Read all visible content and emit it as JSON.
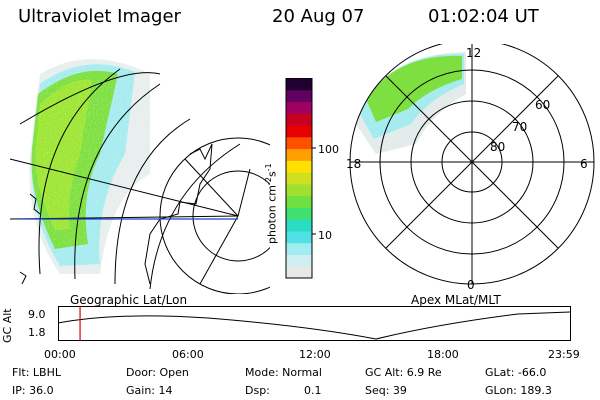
{
  "header": {
    "instrument": "Ultraviolet Imager",
    "date": "20 Aug 07",
    "time": "01:02:04 UT"
  },
  "left_panel": {
    "caption": "Geographic Lat/Lon"
  },
  "right_panel": {
    "caption": "Apex MLat/MLT",
    "mlt_labels": {
      "top": "12",
      "bottom": "0",
      "left": "18",
      "right": "6"
    },
    "lat_labels": [
      "60",
      "70",
      "80"
    ]
  },
  "colorbar": {
    "unit_label": "photon cm",
    "unit_sup1": "-2",
    "unit_mid": "s",
    "unit_sup2": "-1",
    "ticks": [
      "100",
      "10"
    ],
    "colors": [
      "#e8e8e8",
      "#cfeff2",
      "#a0ecf0",
      "#50e0e6",
      "#2adcc0",
      "#40e070",
      "#6ee040",
      "#a0e030",
      "#d0e020",
      "#ffe000",
      "#ffa000",
      "#ff5000",
      "#e80000",
      "#c80020",
      "#a00060",
      "#600060",
      "#200030"
    ]
  },
  "altitude_plot": {
    "y_title": "GC Alt",
    "y_ticks": [
      "9.0",
      "1.8"
    ],
    "x_ticks": [
      "00:00",
      "06:00",
      "12:00",
      "18:00",
      "23:59"
    ],
    "current_marker_time": "01:02",
    "marker_color": "#e00000"
  },
  "footer": {
    "flt": "Flt: LBHL",
    "door": "Door: Open",
    "mode": "Mode: Normal",
    "gc_alt": "GC Alt: 6.9 Re",
    "glat": "GLat: -66.0",
    "ip": "IP: 36.0",
    "gain": "Gain: 14",
    "dsp_label": "Dsp:",
    "dsp_value": "0.1",
    "seq": "Seq: 39",
    "glon": "GLon: 189.3"
  }
}
